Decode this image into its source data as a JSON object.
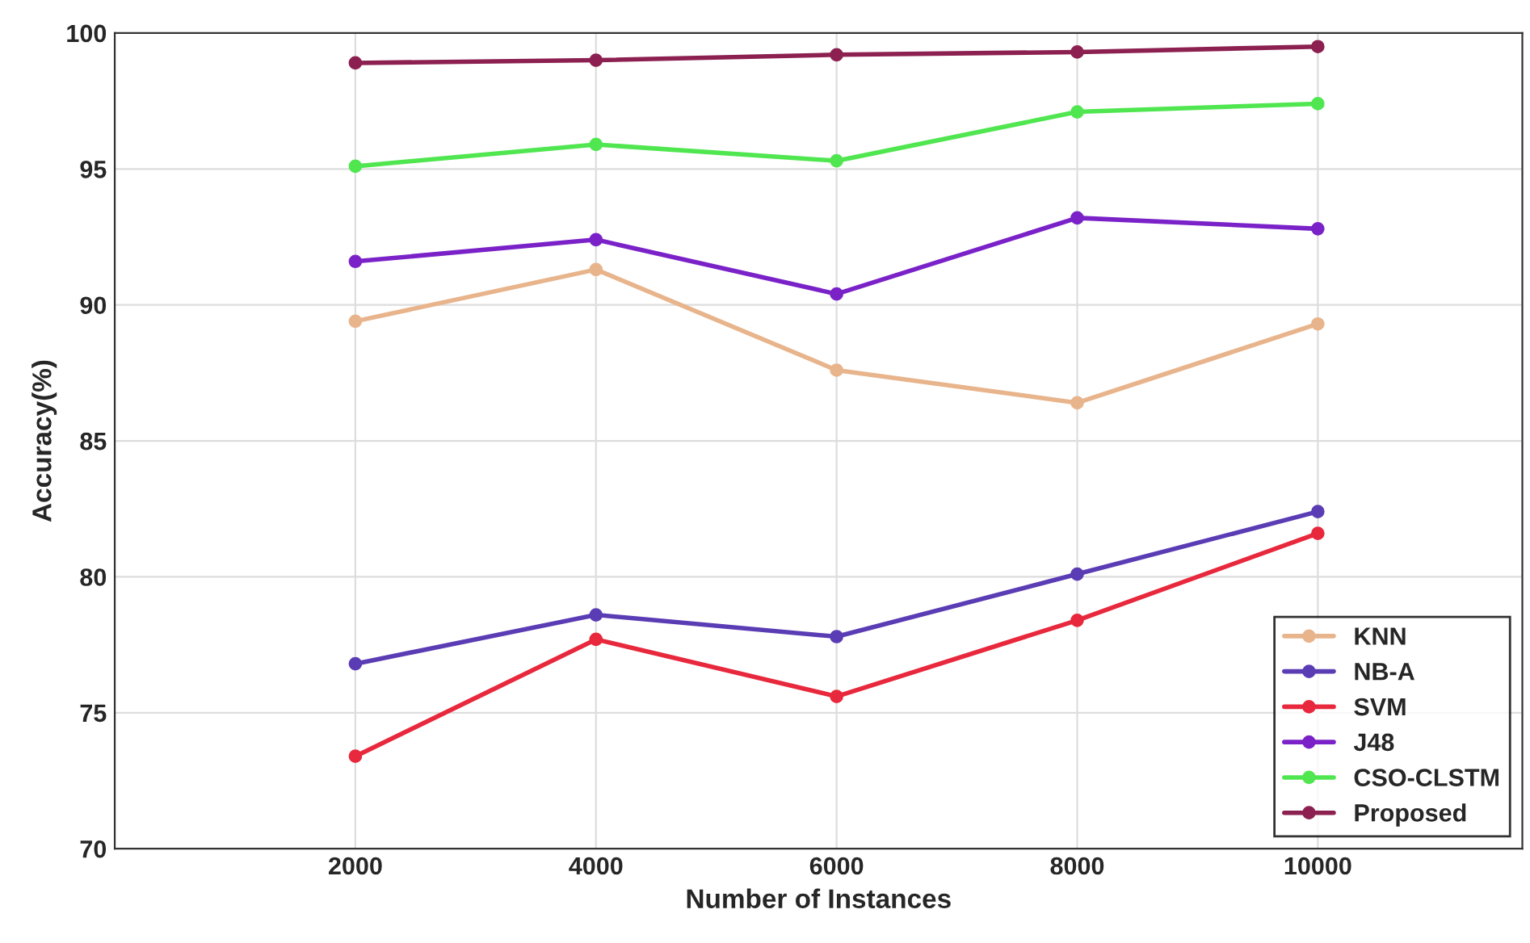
{
  "chart_data": {
    "type": "line",
    "xlabel": "Number of Instances",
    "ylabel": "Accuracy(%)",
    "x": [
      2000,
      4000,
      6000,
      8000,
      10000
    ],
    "series": [
      {
        "name": "KNN",
        "color": "#e8b48c",
        "values": [
          89.4,
          91.3,
          87.6,
          86.4,
          89.3
        ]
      },
      {
        "name": "NB-A",
        "color": "#5a3cb4",
        "values": [
          76.8,
          78.6,
          77.8,
          80.1,
          82.4
        ]
      },
      {
        "name": "SVM",
        "color": "#e8283c",
        "values": [
          73.4,
          77.7,
          75.6,
          78.4,
          81.6
        ]
      },
      {
        "name": "J48",
        "color": "#7a22c8",
        "values": [
          91.6,
          92.4,
          90.4,
          93.2,
          92.8
        ]
      },
      {
        "name": "CSO-CLSTM",
        "color": "#50e650",
        "values": [
          95.1,
          95.9,
          95.3,
          97.1,
          97.4
        ]
      },
      {
        "name": "Proposed",
        "color": "#8c2050",
        "values": [
          98.9,
          99.0,
          99.2,
          99.3,
          99.5
        ]
      }
    ],
    "xlim": [
      0,
      11700
    ],
    "xticks": [
      2000,
      4000,
      6000,
      8000,
      10000
    ],
    "ylim": [
      70,
      100
    ],
    "yticks": [
      70,
      75,
      80,
      85,
      90,
      95,
      100
    ],
    "grid": true,
    "legend": "bottom right",
    "marker": "circle",
    "line_style": "solid"
  }
}
